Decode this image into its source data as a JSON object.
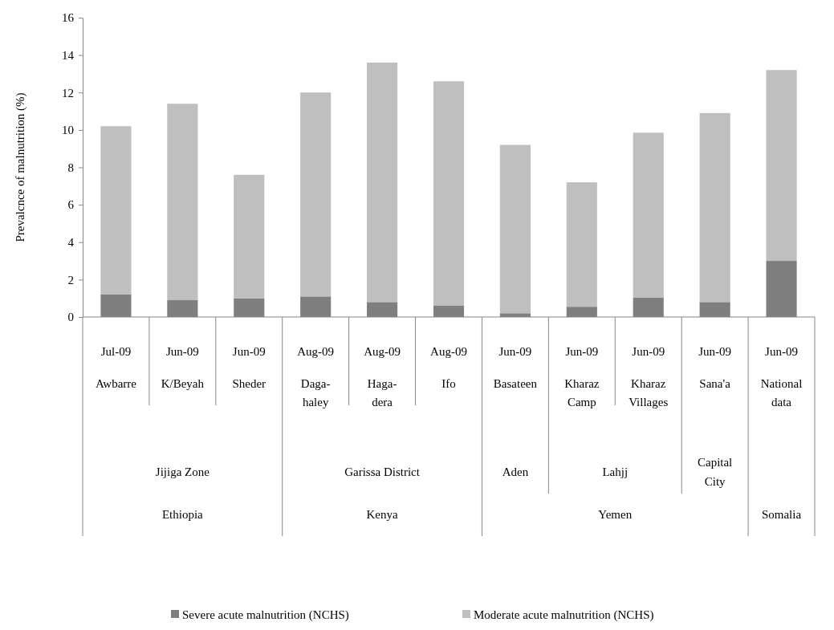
{
  "chart_data": {
    "type": "bar",
    "stacked": true,
    "ylabel": "Prevalcnce of malnutrition (%)",
    "categories": [
      "Jul-09\nAwbarre",
      "Jun-09\nK/Beyah",
      "Jun-09\nSheder",
      "Aug-09\nDaga-\nhaley",
      "Aug-09\nHaga-\ndera",
      "Aug-09\nIfo",
      "Jun-09\nBasateen",
      "Jun-09\nKharaz\nCamp",
      "Jun-09\nKharaz\nVillages",
      "Jun-09\nSana'a",
      "Jun-09\nNational\ndata"
    ],
    "series": [
      {
        "name": "Severe acute malnutrition (NCHS)",
        "color": "#7f7f7f",
        "values": [
          1.2,
          0.9,
          1.0,
          1.1,
          0.8,
          0.6,
          0.2,
          0.55,
          1.05,
          0.8,
          3.0
        ]
      },
      {
        "name": "Moderate acute malnutrition (NCHS)",
        "color": "#bfbfbf",
        "values": [
          9.0,
          10.5,
          6.6,
          10.9,
          12.8,
          12.0,
          9.0,
          6.65,
          8.8,
          10.1,
          10.2
        ]
      }
    ],
    "ylim": [
      0,
      16
    ],
    "yticks": [
      0,
      2,
      4,
      6,
      8,
      10,
      12,
      14,
      16
    ],
    "legend": "bottom",
    "annotations": [
      "Jijiga Zone",
      "Garissa District",
      "Aden",
      "Lahjj",
      "Capital\nCity",
      "Ethiopia",
      "Kenya",
      "Yemen",
      "Somalia"
    ]
  }
}
